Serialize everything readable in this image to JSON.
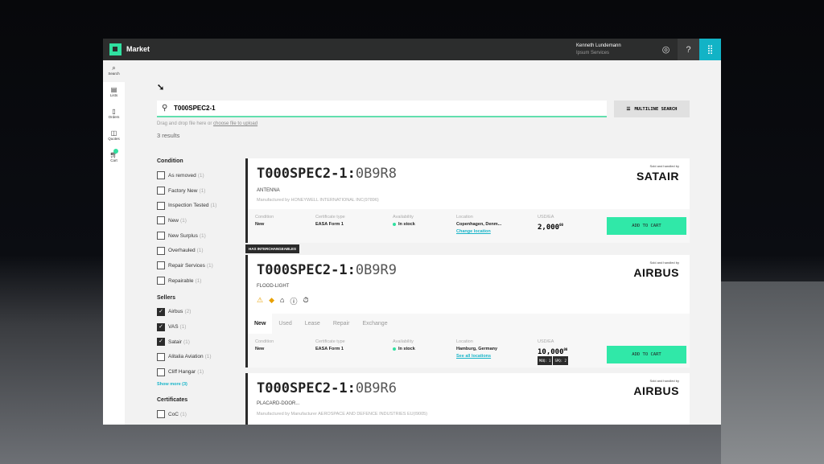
{
  "app": {
    "title": "Market",
    "user_name": "Kenneth Lundemann",
    "user_org": "Ipsum Services"
  },
  "sidebar": {
    "items": [
      {
        "label": "Search",
        "icon": "search-icon"
      },
      {
        "label": "Lists",
        "icon": "list-icon"
      },
      {
        "label": "Orders",
        "icon": "orders-icon"
      },
      {
        "label": "Quotes",
        "icon": "quotes-icon"
      },
      {
        "label": "Cart",
        "icon": "cart-icon"
      }
    ]
  },
  "search": {
    "value": "T000SPEC2-1",
    "multiline_label": "MULTILINE SEARCH",
    "drag_text": "Drag and drop file here or",
    "drag_link": "choose file to upload",
    "results": "3 results"
  },
  "filters": {
    "condition": {
      "title": "Condition",
      "items": [
        {
          "label": "As removed",
          "count": "(1)"
        },
        {
          "label": "Factory New",
          "count": "(1)"
        },
        {
          "label": "Inspection Tested",
          "count": "(1)"
        },
        {
          "label": "New",
          "count": "(1)"
        },
        {
          "label": "New Surplus",
          "count": "(1)"
        },
        {
          "label": "Overhauled",
          "count": "(1)"
        },
        {
          "label": "Repair Services",
          "count": "(1)"
        },
        {
          "label": "Repairable",
          "count": "(1)"
        }
      ]
    },
    "sellers": {
      "title": "Sellers",
      "items": [
        {
          "label": "Airbus",
          "count": "(2)",
          "checked": true
        },
        {
          "label": "VAS",
          "count": "(1)",
          "checked": true
        },
        {
          "label": "Satair",
          "count": "(1)",
          "checked": true
        },
        {
          "label": "Alitalia Aviation",
          "count": "(1)",
          "checked": false
        },
        {
          "label": "Cliff Hangar",
          "count": "(1)",
          "checked": false
        }
      ],
      "show_more": "Show more (3)"
    },
    "certificates": {
      "title": "Certificates",
      "items": [
        {
          "label": "CoC",
          "count": "(1)"
        }
      ]
    }
  },
  "labels": {
    "condition": "Condition",
    "certificate": "Certificate type",
    "availability": "Availability",
    "location": "Location",
    "price": "USD/EA",
    "add_to_cart": "ADD TO CART",
    "sold_by": "Sold and handled by"
  },
  "results": [
    {
      "pn": "T000SPEC2-1:",
      "suffix": "0B9R8",
      "desc": "ANTENNA",
      "mfr": "Manufactured by HONEYWELL INTERNATIONAL INC(97896)",
      "seller": "SATAIR",
      "condition": "New",
      "certificate": "EASA Form 1",
      "availability": "In stock",
      "location": "Copenhagen, Denm...",
      "location_link": "Change location",
      "price": "2,000",
      "cents": "00"
    },
    {
      "badge": "HAS INTERCHANGEABLES",
      "pn": "T000SPEC2-1:",
      "suffix": "0B9R9",
      "desc": "FLOOD-LIGHT",
      "seller": "AIRBUS",
      "tabs": [
        "New",
        "Used",
        "Lease",
        "Repair",
        "Exchange"
      ],
      "condition": "New",
      "certificate": "EASA Form 1",
      "availability": "In stock",
      "location": "Hamburg, Germany",
      "location_link": "See all locations",
      "price": "10,000",
      "cents": "00",
      "moq": "MOQ: 1",
      "spq": "SPQ: 2"
    },
    {
      "pn": "T000SPEC2-1:",
      "suffix": "0B9R6",
      "desc": "PLACARD-DOOR...",
      "mfr": "Manufactured by Manufacturer AEROSPACE AND DEFENCE INDUSTRIES EU(I9005)",
      "seller": "AIRBUS"
    }
  ],
  "colors": {
    "accent": "#30e8a8",
    "link": "#19b5c9",
    "header": "#2c2d2d"
  }
}
